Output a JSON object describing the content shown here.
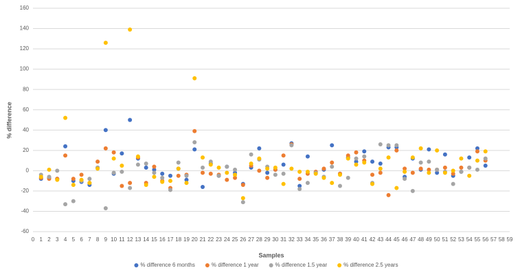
{
  "chart_data": {
    "type": "scatter",
    "y_label": "% difference",
    "x_label": "Samples",
    "x": [
      1,
      2,
      3,
      4,
      5,
      6,
      7,
      8,
      9,
      10,
      11,
      12,
      13,
      14,
      15,
      16,
      17,
      18,
      19,
      20,
      21,
      22,
      23,
      24,
      25,
      26,
      27,
      28,
      29,
      30,
      31,
      32,
      33,
      34,
      35,
      36,
      37,
      38,
      39,
      40,
      41,
      42,
      43,
      44,
      45,
      46,
      47,
      48,
      49,
      50,
      51,
      52,
      53,
      54,
      55,
      56
    ],
    "xlim": [
      0,
      59
    ],
    "xticks": [
      0,
      1,
      2,
      3,
      4,
      5,
      6,
      7,
      8,
      9,
      10,
      11,
      12,
      13,
      14,
      15,
      16,
      17,
      18,
      19,
      20,
      21,
      22,
      23,
      24,
      25,
      26,
      27,
      28,
      29,
      30,
      31,
      32,
      33,
      34,
      35,
      36,
      37,
      38,
      39,
      40,
      41,
      42,
      43,
      44,
      45,
      46,
      47,
      48,
      49,
      50,
      51,
      52,
      53,
      54,
      55,
      56,
      57,
      58,
      59
    ],
    "ylim": [
      -60,
      160
    ],
    "yticks": [
      -60,
      -40,
      -20,
      0,
      20,
      40,
      60,
      80,
      100,
      120,
      140,
      160
    ],
    "grid": true,
    "legend": "bottom",
    "series": [
      {
        "name": "% difference 6 months",
        "color": "#4472c4",
        "values": [
          -8,
          -7,
          -8,
          24,
          -10,
          -11,
          -14,
          3,
          40,
          -3,
          17,
          50,
          12,
          3,
          1,
          -3,
          -5,
          2,
          -9,
          21,
          -16,
          7,
          -5,
          4,
          -2,
          -13,
          3,
          22,
          -2,
          1,
          6,
          27,
          -15,
          14,
          -2,
          1,
          25,
          -3,
          13,
          9,
          19,
          9,
          7,
          23,
          23,
          -6,
          12,
          1,
          21,
          -2,
          16,
          -5,
          -1,
          13,
          22,
          5
        ]
      },
      {
        "name": "% difference 1 year",
        "color": "#ed7d31",
        "values": [
          -7,
          -8,
          -8,
          15,
          -8,
          -4,
          -12,
          9,
          22,
          18,
          -15,
          -12,
          13,
          -12,
          4,
          -10,
          -17,
          -5,
          -4,
          39,
          -2,
          -3,
          -4,
          -9,
          -7,
          -14,
          5,
          0,
          -7,
          1,
          15,
          26,
          -8,
          -3,
          -1,
          2,
          8,
          -3,
          15,
          18,
          10,
          -4,
          -2,
          -24,
          20,
          2,
          -2,
          2,
          1,
          1,
          3,
          -3,
          3,
          3,
          19,
          10
        ]
      },
      {
        "name": "% difference 1.5 year",
        "color": "#a5a5a5",
        "values": [
          -4,
          -6,
          0,
          -33,
          -30,
          -10,
          -8,
          3,
          -37,
          -2,
          -1,
          -17,
          6,
          7,
          -2,
          -7,
          -19,
          8,
          -5,
          28,
          3,
          9,
          -5,
          4,
          1,
          -31,
          16,
          11,
          4,
          -4,
          -3,
          25,
          -18,
          -12,
          -2,
          -6,
          4,
          -15,
          -7,
          12,
          14,
          -12,
          26,
          25,
          25,
          -8,
          -20,
          8,
          9,
          1,
          -1,
          -13,
          -1,
          3,
          1,
          12
        ]
      },
      {
        "name": "% difference 2.5 years",
        "color": "#ffc000",
        "values": [
          -6,
          1,
          -9,
          52,
          -14,
          -9,
          -12,
          2,
          126,
          12,
          5,
          139,
          14,
          -14,
          -6,
          -11,
          -10,
          2,
          -12,
          91,
          13,
          6,
          3,
          -2,
          -4,
          -27,
          7,
          12,
          2,
          3,
          -13,
          2,
          -1,
          -1,
          -3,
          -7,
          -12,
          -4,
          12,
          6,
          8,
          -13,
          2,
          13,
          -17,
          -1,
          13,
          22,
          -2,
          20,
          -2,
          0,
          12,
          -5,
          10,
          19
        ]
      }
    ]
  }
}
